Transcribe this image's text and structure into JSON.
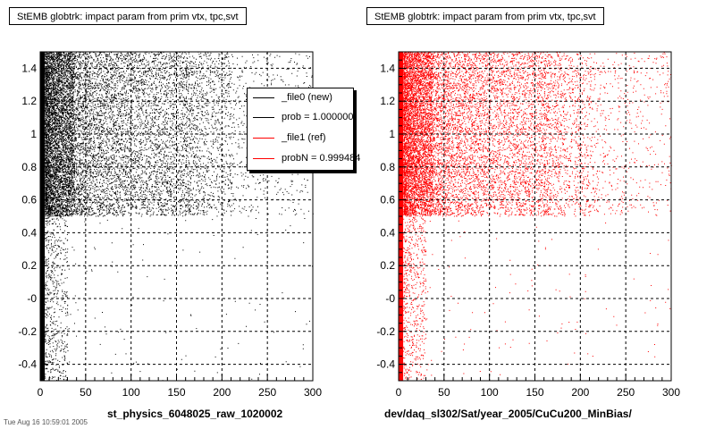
{
  "chart_data": [
    {
      "type": "scatter",
      "title": "StEMB globtrk: impact param from prim vtx, tpc,svt",
      "xlabel": "st_physics_6048025_raw_1020002",
      "ylabel": "",
      "xlim": [
        0,
        300
      ],
      "ylim": [
        -0.5,
        1.5
      ],
      "xticks": [
        0,
        50,
        100,
        150,
        200,
        250,
        300
      ],
      "yticks": [
        -0.4,
        -0.2,
        0,
        0.2,
        0.4,
        0.6,
        0.8,
        1,
        1.2,
        1.4
      ],
      "ytick_labels": [
        "-0.4",
        "-0.2",
        "-0",
        "0.2",
        "0.4",
        "0.6",
        "0.8",
        "1",
        "1.2",
        "1.4"
      ],
      "grid": true,
      "series": [
        {
          "name": "_file0 (new)",
          "color": "#000000",
          "density": [
            {
              "x": [
                0,
                5
              ],
              "y": [
                -0.5,
                1.5
              ],
              "level": "saturated"
            },
            {
              "x": [
                5,
                35
              ],
              "y": [
                0.5,
                1.5
              ],
              "level": "very-dense"
            },
            {
              "x": [
                35,
                160
              ],
              "y": [
                0.5,
                1.5
              ],
              "level": "dense"
            },
            {
              "x": [
                160,
                210
              ],
              "y": [
                0.5,
                1.5
              ],
              "level": "sparse"
            },
            {
              "x": [
                210,
                300
              ],
              "y": [
                0.5,
                1.5
              ],
              "level": "very-sparse"
            },
            {
              "x": [
                5,
                30
              ],
              "y": [
                -0.5,
                0.5
              ],
              "level": "sparse"
            },
            {
              "x": [
                30,
                300
              ],
              "y": [
                -0.5,
                0.5
              ],
              "level": "empty"
            }
          ]
        }
      ],
      "legend": {
        "position": "top-right",
        "entries": [
          {
            "label": "_file0 (new)",
            "color": "#000000"
          },
          {
            "label": "prob = 1.000000",
            "color": "#000000"
          },
          {
            "label": "_file1 (ref)",
            "color": "#ff0000"
          },
          {
            "label": "probN = 0.999484",
            "color": "#ff0000"
          }
        ]
      }
    },
    {
      "type": "scatter",
      "title": "StEMB globtrk: impact param from prim vtx, tpc,svt",
      "xlabel": "dev/daq_sl302/Sat/year_2005/CuCu200_MinBias/",
      "ylabel": "",
      "xlim": [
        0,
        300
      ],
      "ylim": [
        -0.5,
        1.5
      ],
      "xticks": [
        0,
        50,
        100,
        150,
        200,
        250,
        300
      ],
      "yticks": [
        -0.4,
        -0.2,
        0,
        0.2,
        0.4,
        0.6,
        0.8,
        1,
        1.2,
        1.4
      ],
      "ytick_labels": [
        "-0.4",
        "-0.2",
        "-0",
        "0.2",
        "0.4",
        "0.6",
        "0.8",
        "1",
        "1.2",
        "1.4"
      ],
      "grid": true,
      "series": [
        {
          "name": "_file1 (ref)",
          "color": "#ff0000",
          "density": [
            {
              "x": [
                0,
                5
              ],
              "y": [
                -0.5,
                1.5
              ],
              "level": "saturated"
            },
            {
              "x": [
                5,
                35
              ],
              "y": [
                0.5,
                1.5
              ],
              "level": "very-dense"
            },
            {
              "x": [
                35,
                160
              ],
              "y": [
                0.5,
                1.5
              ],
              "level": "dense"
            },
            {
              "x": [
                160,
                210
              ],
              "y": [
                0.5,
                1.5
              ],
              "level": "sparse"
            },
            {
              "x": [
                210,
                300
              ],
              "y": [
                0.5,
                1.5
              ],
              "level": "very-sparse"
            },
            {
              "x": [
                5,
                30
              ],
              "y": [
                -0.5,
                0.5
              ],
              "level": "sparse"
            },
            {
              "x": [
                30,
                300
              ],
              "y": [
                -0.5,
                0.5
              ],
              "level": "empty"
            }
          ]
        }
      ]
    }
  ],
  "panels": [
    {
      "title": "StEMB globtrk: impact param from prim vtx, tpc,svt",
      "xlabel": "st_physics_6048025_raw_1020002"
    },
    {
      "title": "StEMB globtrk: impact param from prim vtx, tpc,svt",
      "xlabel": "dev/daq_sl302/Sat/year_2005/CuCu200_MinBias/"
    }
  ],
  "legend": [
    {
      "label": "_file0 (new)",
      "color": "#000000"
    },
    {
      "label": "prob = 1.000000",
      "color": "#000000"
    },
    {
      "label": "_file1 (ref)",
      "color": "#ff0000"
    },
    {
      "label": "probN = 0.999484",
      "color": "#ff0000"
    }
  ],
  "footer": "Tue Aug 16 10:59:01 2005"
}
